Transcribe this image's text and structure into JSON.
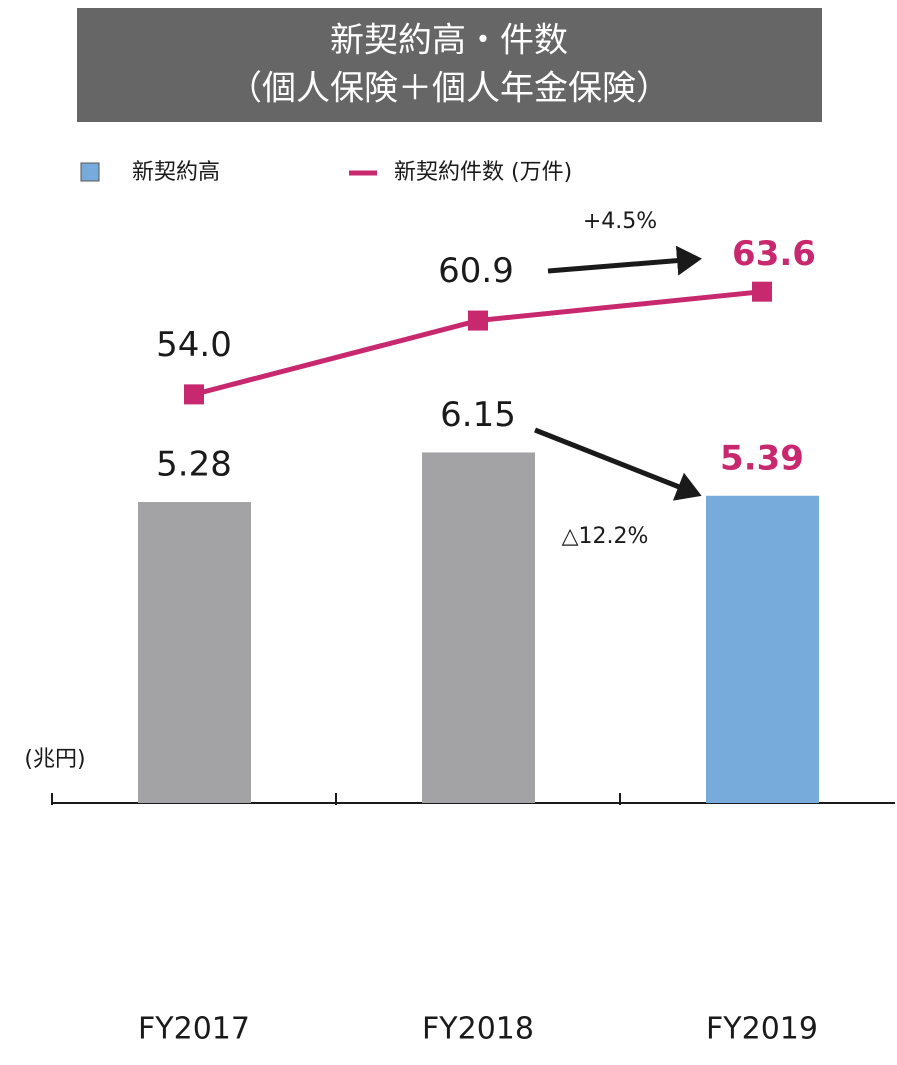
{
  "chart_data": {
    "type": "bar_line",
    "title": "新契約高・件数",
    "subtitle": "（個人保険＋個人年金保険）",
    "categories": [
      "FY2017",
      "FY2018",
      "FY2019"
    ],
    "ylim": [
      0,
      14
    ],
    "y2lim": [
      15.8,
      90.4
    ],
    "y_unit_label": "(兆円)",
    "series": [
      {
        "name": "新契約高",
        "type": "bar",
        "color": "#77abdb",
        "colors": [
          "#a3a3a6",
          "#a3a3a6",
          "#77abdb"
        ],
        "values": [
          5.28,
          6.15,
          5.39
        ]
      },
      {
        "name": "新契約件数 (万件)",
        "type": "line",
        "axis": "y2",
        "color": "#c8296e",
        "values": [
          54.0,
          60.9,
          63.6
        ],
        "value_labels": [
          "54.0",
          "60.9",
          "63.6"
        ]
      }
    ],
    "annotations": [
      "+4.5%",
      "△12.2%"
    ]
  }
}
